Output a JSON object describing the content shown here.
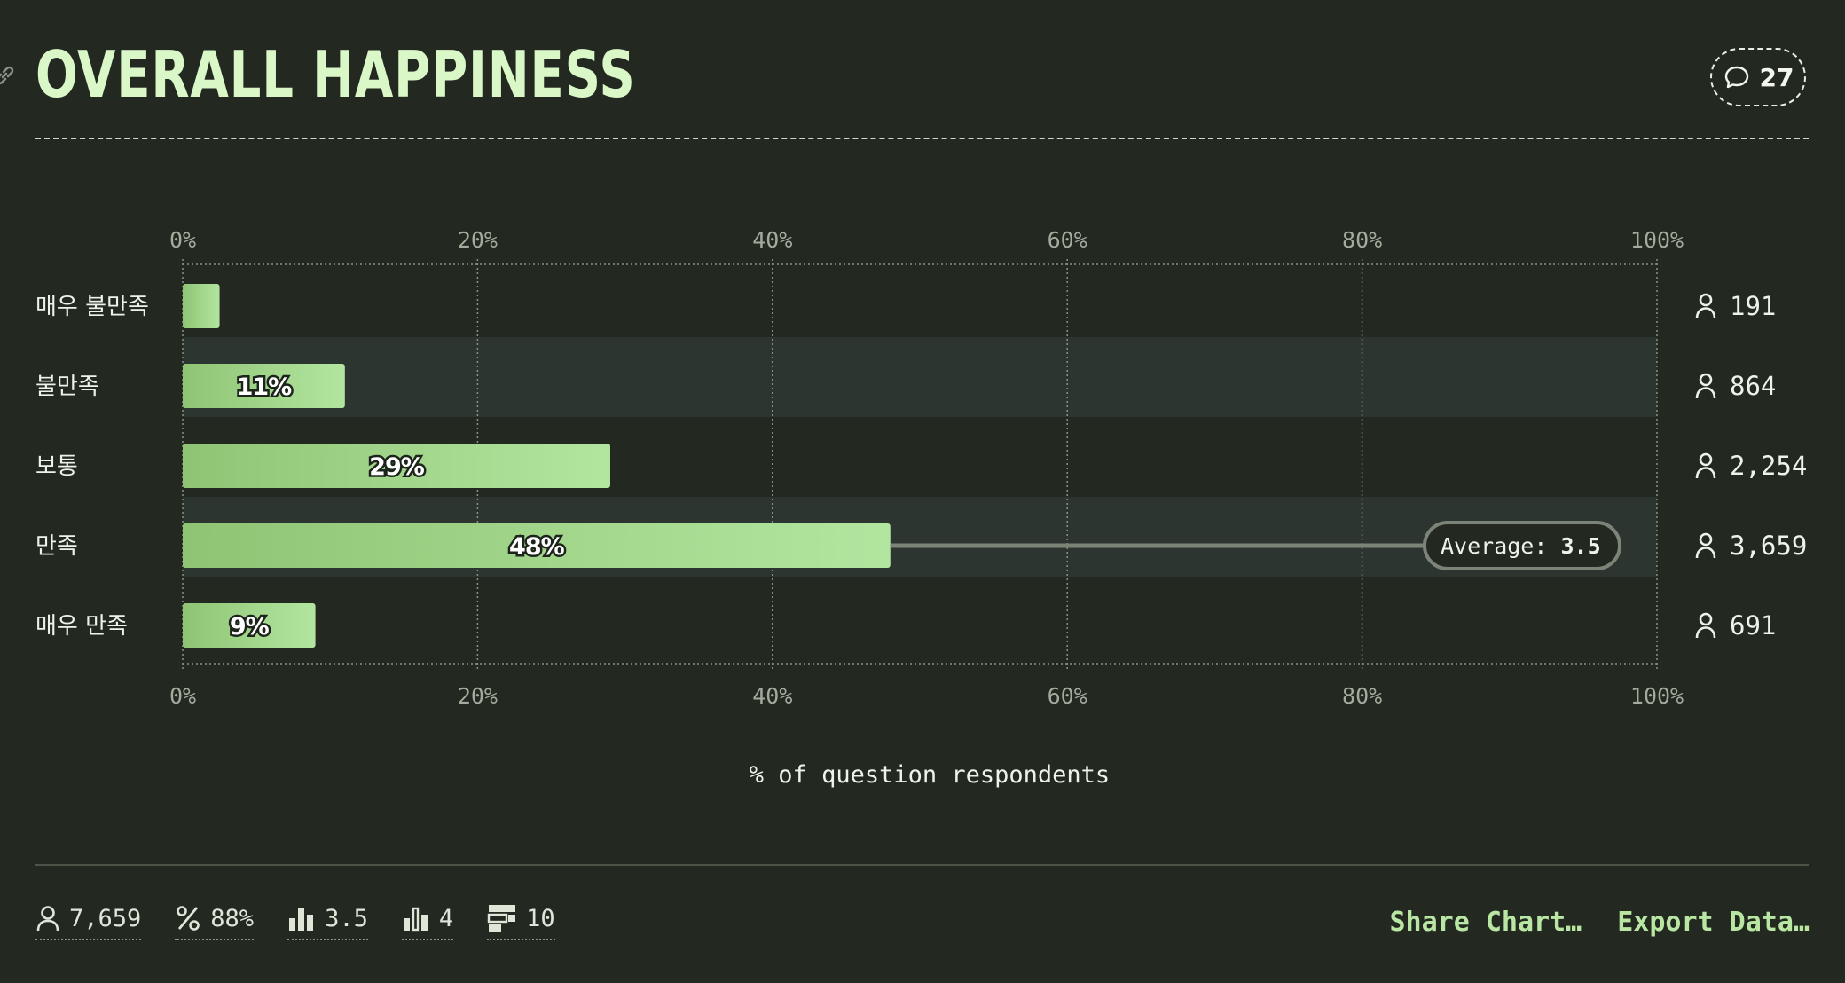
{
  "header": {
    "title": "OVERALL HAPPINESS",
    "comment_count": "27"
  },
  "chart_data": {
    "type": "bar",
    "orientation": "horizontal",
    "title": "OVERALL HAPPINESS",
    "xlabel": "% of question respondents",
    "ylabel": "",
    "xlim": [
      0,
      100
    ],
    "x_ticks": [
      "0%",
      "20%",
      "40%",
      "60%",
      "80%",
      "100%"
    ],
    "x_tick_values": [
      0,
      20,
      40,
      60,
      80,
      100
    ],
    "categories": [
      "매우 불만족",
      "불만족",
      "보통",
      "만족",
      "매우 만족"
    ],
    "values": [
      2.5,
      11,
      29,
      48,
      9
    ],
    "value_labels": [
      "",
      "11%",
      "29%",
      "48%",
      "9%"
    ],
    "respondent_counts": [
      "191",
      "864",
      "2,254",
      "3,659",
      "691"
    ],
    "average": {
      "label": "Average:",
      "value": "3.5",
      "category_index": 3
    },
    "grid": true,
    "colors": {
      "bar_start": "#8fc474",
      "bar_end": "#b2e6a0",
      "row_highlight": "#2c3530"
    }
  },
  "footer": {
    "stats": [
      {
        "icon": "user-icon",
        "value": "7,659"
      },
      {
        "icon": "percent-icon",
        "value": "88%"
      },
      {
        "icon": "average-bars-icon",
        "value": "3.5"
      },
      {
        "icon": "median-bars-icon",
        "value": "4"
      },
      {
        "icon": "rank-icon",
        "value": "10"
      }
    ],
    "share_label": "Share Chart…",
    "export_label": "Export Data…"
  }
}
